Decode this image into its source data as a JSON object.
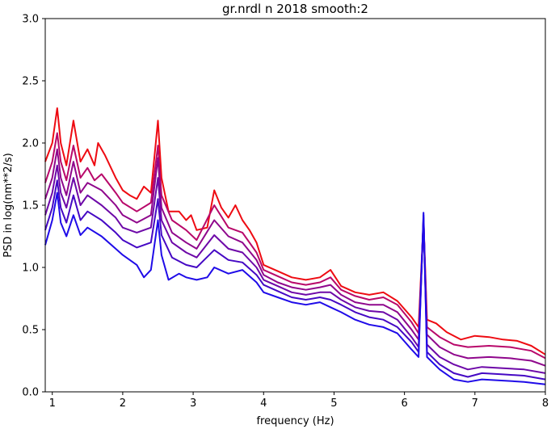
{
  "chart_data": {
    "type": "line",
    "title": "gr.nrdl n 2018 smooth:2",
    "xlabel": "frequency (Hz)",
    "ylabel": "PSD in log(nm**2/s)",
    "xlim": [
      0.9,
      8.0
    ],
    "ylim": [
      0.0,
      3.0
    ],
    "xticks": [
      "1",
      "2",
      "3",
      "4",
      "5",
      "6",
      "7",
      "8"
    ],
    "yticks": [
      "0.0",
      "0.5",
      "1.0",
      "1.5",
      "2.0",
      "2.5",
      "3.0"
    ],
    "grid": false,
    "legend": "none",
    "series": [
      {
        "color": "#ee0b12",
        "points": [
          [
            0.9,
            1.85
          ],
          [
            1.0,
            2.0
          ],
          [
            1.07,
            2.28
          ],
          [
            1.12,
            2.0
          ],
          [
            1.2,
            1.82
          ],
          [
            1.3,
            2.18
          ],
          [
            1.4,
            1.85
          ],
          [
            1.5,
            1.95
          ],
          [
            1.6,
            1.82
          ],
          [
            1.65,
            2.0
          ],
          [
            1.75,
            1.9
          ],
          [
            1.9,
            1.72
          ],
          [
            2.0,
            1.62
          ],
          [
            2.1,
            1.58
          ],
          [
            2.2,
            1.55
          ],
          [
            2.3,
            1.65
          ],
          [
            2.4,
            1.6
          ],
          [
            2.5,
            2.18
          ],
          [
            2.55,
            1.72
          ],
          [
            2.65,
            1.45
          ],
          [
            2.8,
            1.45
          ],
          [
            2.9,
            1.38
          ],
          [
            2.97,
            1.42
          ],
          [
            3.05,
            1.3
          ],
          [
            3.2,
            1.32
          ],
          [
            3.3,
            1.62
          ],
          [
            3.4,
            1.48
          ],
          [
            3.5,
            1.4
          ],
          [
            3.6,
            1.5
          ],
          [
            3.7,
            1.38
          ],
          [
            3.8,
            1.3
          ],
          [
            3.9,
            1.2
          ],
          [
            4.0,
            1.02
          ],
          [
            4.2,
            0.97
          ],
          [
            4.4,
            0.92
          ],
          [
            4.6,
            0.9
          ],
          [
            4.8,
            0.92
          ],
          [
            4.95,
            0.98
          ],
          [
            5.1,
            0.85
          ],
          [
            5.3,
            0.8
          ],
          [
            5.5,
            0.78
          ],
          [
            5.7,
            0.8
          ],
          [
            5.9,
            0.73
          ],
          [
            6.1,
            0.6
          ],
          [
            6.2,
            0.52
          ],
          [
            6.27,
            1.38
          ],
          [
            6.32,
            0.58
          ],
          [
            6.45,
            0.55
          ],
          [
            6.6,
            0.48
          ],
          [
            6.8,
            0.42
          ],
          [
            7.0,
            0.45
          ],
          [
            7.2,
            0.44
          ],
          [
            7.4,
            0.42
          ],
          [
            7.6,
            0.41
          ],
          [
            7.8,
            0.37
          ],
          [
            8.0,
            0.3
          ]
        ]
      },
      {
        "color": "#b8086a",
        "points": [
          [
            0.9,
            1.68
          ],
          [
            1.0,
            1.85
          ],
          [
            1.07,
            2.08
          ],
          [
            1.12,
            1.85
          ],
          [
            1.2,
            1.7
          ],
          [
            1.3,
            1.98
          ],
          [
            1.4,
            1.72
          ],
          [
            1.5,
            1.8
          ],
          [
            1.6,
            1.7
          ],
          [
            1.7,
            1.75
          ],
          [
            1.9,
            1.6
          ],
          [
            2.0,
            1.52
          ],
          [
            2.2,
            1.45
          ],
          [
            2.4,
            1.52
          ],
          [
            2.5,
            1.98
          ],
          [
            2.55,
            1.58
          ],
          [
            2.7,
            1.38
          ],
          [
            2.9,
            1.3
          ],
          [
            3.05,
            1.22
          ],
          [
            3.3,
            1.5
          ],
          [
            3.5,
            1.32
          ],
          [
            3.7,
            1.28
          ],
          [
            3.9,
            1.12
          ],
          [
            4.0,
            0.98
          ],
          [
            4.2,
            0.93
          ],
          [
            4.4,
            0.88
          ],
          [
            4.6,
            0.86
          ],
          [
            4.8,
            0.88
          ],
          [
            4.95,
            0.92
          ],
          [
            5.1,
            0.82
          ],
          [
            5.3,
            0.77
          ],
          [
            5.5,
            0.74
          ],
          [
            5.7,
            0.76
          ],
          [
            5.9,
            0.7
          ],
          [
            6.1,
            0.56
          ],
          [
            6.2,
            0.47
          ],
          [
            6.27,
            1.36
          ],
          [
            6.32,
            0.52
          ],
          [
            6.5,
            0.44
          ],
          [
            6.7,
            0.38
          ],
          [
            6.9,
            0.36
          ],
          [
            7.2,
            0.37
          ],
          [
            7.5,
            0.36
          ],
          [
            7.8,
            0.33
          ],
          [
            8.0,
            0.27
          ]
        ]
      },
      {
        "color": "#8f078c",
        "points": [
          [
            0.9,
            1.55
          ],
          [
            1.0,
            1.72
          ],
          [
            1.07,
            1.95
          ],
          [
            1.12,
            1.72
          ],
          [
            1.2,
            1.58
          ],
          [
            1.3,
            1.85
          ],
          [
            1.4,
            1.6
          ],
          [
            1.5,
            1.68
          ],
          [
            1.7,
            1.62
          ],
          [
            1.9,
            1.5
          ],
          [
            2.0,
            1.42
          ],
          [
            2.2,
            1.36
          ],
          [
            2.4,
            1.42
          ],
          [
            2.5,
            1.88
          ],
          [
            2.55,
            1.48
          ],
          [
            2.7,
            1.28
          ],
          [
            2.9,
            1.2
          ],
          [
            3.05,
            1.15
          ],
          [
            3.3,
            1.38
          ],
          [
            3.5,
            1.25
          ],
          [
            3.7,
            1.2
          ],
          [
            3.9,
            1.06
          ],
          [
            4.0,
            0.94
          ],
          [
            4.2,
            0.88
          ],
          [
            4.4,
            0.84
          ],
          [
            4.6,
            0.82
          ],
          [
            4.8,
            0.84
          ],
          [
            4.95,
            0.86
          ],
          [
            5.1,
            0.78
          ],
          [
            5.3,
            0.72
          ],
          [
            5.5,
            0.7
          ],
          [
            5.7,
            0.7
          ],
          [
            5.9,
            0.64
          ],
          [
            6.1,
            0.5
          ],
          [
            6.2,
            0.42
          ],
          [
            6.27,
            1.38
          ],
          [
            6.32,
            0.46
          ],
          [
            6.5,
            0.36
          ],
          [
            6.7,
            0.3
          ],
          [
            6.9,
            0.27
          ],
          [
            7.2,
            0.28
          ],
          [
            7.5,
            0.27
          ],
          [
            7.8,
            0.25
          ],
          [
            8.0,
            0.21
          ]
        ]
      },
      {
        "color": "#6d08a8",
        "points": [
          [
            0.9,
            1.42
          ],
          [
            1.0,
            1.6
          ],
          [
            1.07,
            1.82
          ],
          [
            1.12,
            1.6
          ],
          [
            1.2,
            1.48
          ],
          [
            1.3,
            1.72
          ],
          [
            1.4,
            1.5
          ],
          [
            1.5,
            1.58
          ],
          [
            1.7,
            1.5
          ],
          [
            1.9,
            1.4
          ],
          [
            2.0,
            1.32
          ],
          [
            2.2,
            1.28
          ],
          [
            2.4,
            1.32
          ],
          [
            2.5,
            1.72
          ],
          [
            2.55,
            1.38
          ],
          [
            2.7,
            1.2
          ],
          [
            2.9,
            1.12
          ],
          [
            3.05,
            1.08
          ],
          [
            3.3,
            1.26
          ],
          [
            3.5,
            1.15
          ],
          [
            3.7,
            1.12
          ],
          [
            3.9,
            1.0
          ],
          [
            4.0,
            0.9
          ],
          [
            4.2,
            0.85
          ],
          [
            4.4,
            0.8
          ],
          [
            4.6,
            0.78
          ],
          [
            4.8,
            0.8
          ],
          [
            4.95,
            0.8
          ],
          [
            5.1,
            0.74
          ],
          [
            5.3,
            0.68
          ],
          [
            5.5,
            0.65
          ],
          [
            5.7,
            0.64
          ],
          [
            5.9,
            0.58
          ],
          [
            6.1,
            0.44
          ],
          [
            6.2,
            0.36
          ],
          [
            6.27,
            1.4
          ],
          [
            6.32,
            0.38
          ],
          [
            6.5,
            0.28
          ],
          [
            6.7,
            0.22
          ],
          [
            6.9,
            0.18
          ],
          [
            7.1,
            0.2
          ],
          [
            7.4,
            0.19
          ],
          [
            7.7,
            0.18
          ],
          [
            8.0,
            0.15
          ]
        ]
      },
      {
        "color": "#4508c4",
        "points": [
          [
            0.9,
            1.3
          ],
          [
            1.0,
            1.48
          ],
          [
            1.07,
            1.7
          ],
          [
            1.12,
            1.48
          ],
          [
            1.2,
            1.36
          ],
          [
            1.3,
            1.58
          ],
          [
            1.4,
            1.38
          ],
          [
            1.5,
            1.45
          ],
          [
            1.7,
            1.38
          ],
          [
            1.9,
            1.28
          ],
          [
            2.0,
            1.22
          ],
          [
            2.2,
            1.16
          ],
          [
            2.4,
            1.2
          ],
          [
            2.5,
            1.55
          ],
          [
            2.55,
            1.26
          ],
          [
            2.7,
            1.08
          ],
          [
            2.9,
            1.02
          ],
          [
            3.05,
            1.0
          ],
          [
            3.3,
            1.14
          ],
          [
            3.5,
            1.06
          ],
          [
            3.7,
            1.04
          ],
          [
            3.9,
            0.94
          ],
          [
            4.0,
            0.86
          ],
          [
            4.2,
            0.81
          ],
          [
            4.4,
            0.76
          ],
          [
            4.6,
            0.74
          ],
          [
            4.8,
            0.76
          ],
          [
            4.95,
            0.74
          ],
          [
            5.1,
            0.7
          ],
          [
            5.3,
            0.64
          ],
          [
            5.5,
            0.6
          ],
          [
            5.7,
            0.58
          ],
          [
            5.9,
            0.52
          ],
          [
            6.1,
            0.4
          ],
          [
            6.2,
            0.32
          ],
          [
            6.27,
            1.42
          ],
          [
            6.32,
            0.32
          ],
          [
            6.5,
            0.22
          ],
          [
            6.7,
            0.15
          ],
          [
            6.9,
            0.12
          ],
          [
            7.1,
            0.15
          ],
          [
            7.4,
            0.14
          ],
          [
            7.7,
            0.13
          ],
          [
            8.0,
            0.1
          ]
        ]
      },
      {
        "color": "#1f0be8",
        "points": [
          [
            0.9,
            1.18
          ],
          [
            1.0,
            1.38
          ],
          [
            1.07,
            1.6
          ],
          [
            1.12,
            1.36
          ],
          [
            1.2,
            1.25
          ],
          [
            1.3,
            1.42
          ],
          [
            1.4,
            1.26
          ],
          [
            1.5,
            1.32
          ],
          [
            1.7,
            1.25
          ],
          [
            1.9,
            1.15
          ],
          [
            2.0,
            1.1
          ],
          [
            2.2,
            1.02
          ],
          [
            2.3,
            0.92
          ],
          [
            2.4,
            0.98
          ],
          [
            2.5,
            1.38
          ],
          [
            2.55,
            1.1
          ],
          [
            2.65,
            0.9
          ],
          [
            2.8,
            0.95
          ],
          [
            2.9,
            0.92
          ],
          [
            3.05,
            0.9
          ],
          [
            3.2,
            0.92
          ],
          [
            3.3,
            1.0
          ],
          [
            3.5,
            0.95
          ],
          [
            3.7,
            0.98
          ],
          [
            3.9,
            0.88
          ],
          [
            4.0,
            0.8
          ],
          [
            4.2,
            0.76
          ],
          [
            4.4,
            0.72
          ],
          [
            4.6,
            0.7
          ],
          [
            4.8,
            0.72
          ],
          [
            4.95,
            0.68
          ],
          [
            5.1,
            0.64
          ],
          [
            5.3,
            0.58
          ],
          [
            5.5,
            0.54
          ],
          [
            5.7,
            0.52
          ],
          [
            5.9,
            0.47
          ],
          [
            6.1,
            0.34
          ],
          [
            6.2,
            0.28
          ],
          [
            6.27,
            1.44
          ],
          [
            6.32,
            0.28
          ],
          [
            6.5,
            0.18
          ],
          [
            6.7,
            0.1
          ],
          [
            6.9,
            0.08
          ],
          [
            7.1,
            0.1
          ],
          [
            7.4,
            0.09
          ],
          [
            7.7,
            0.08
          ],
          [
            8.0,
            0.06
          ]
        ]
      }
    ]
  }
}
